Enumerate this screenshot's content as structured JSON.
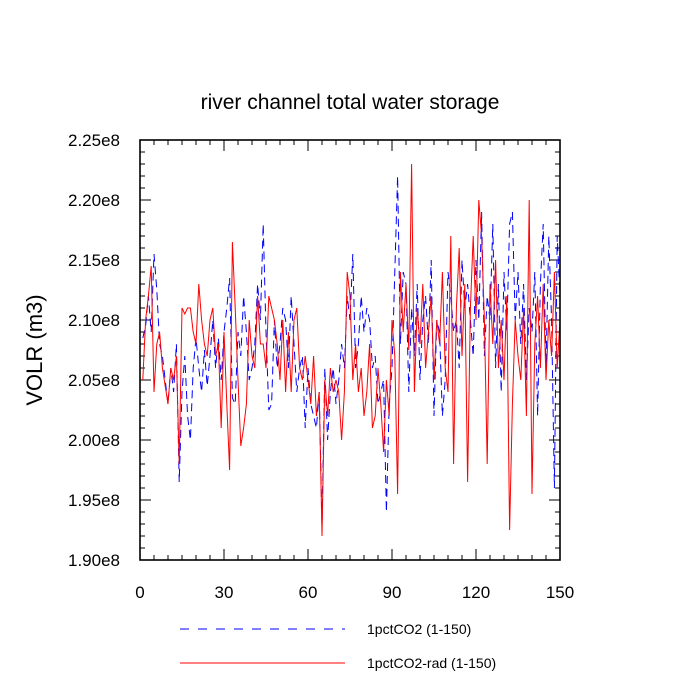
{
  "chart_data": {
    "type": "line",
    "title": "river channel total water storage",
    "xlabel": "",
    "ylabel": "VOLR  (m3)",
    "xlim": [
      0,
      150
    ],
    "ylim": [
      190000000.0,
      225000000.0
    ],
    "x_ticks": [
      0,
      30,
      60,
      90,
      120,
      150
    ],
    "x_tick_labels": [
      "0",
      "30",
      "60",
      "90",
      "120",
      "150"
    ],
    "y_ticks": [
      190000000.0,
      195000000.0,
      200000000.0,
      205000000.0,
      210000000.0,
      215000000.0,
      220000000.0,
      225000000.0
    ],
    "y_tick_labels": [
      "1.90e8",
      "1.95e8",
      "2.00e8",
      "2.05e8",
      "2.10e8",
      "2.15e8",
      "2.20e8",
      "2.25e8"
    ],
    "grid": false,
    "legend_position": "bottom",
    "series": [
      {
        "name": "1pctCO2 (1-150)",
        "color": "#0000ff",
        "dash": "dashed",
        "x": [
          1,
          2,
          3,
          4,
          5,
          6,
          7,
          8,
          9,
          10,
          11,
          12,
          13,
          14,
          15,
          16,
          17,
          18,
          19,
          20,
          21,
          22,
          23,
          24,
          25,
          26,
          27,
          28,
          29,
          30,
          31,
          32,
          33,
          34,
          35,
          36,
          37,
          38,
          39,
          40,
          41,
          42,
          43,
          44,
          45,
          46,
          47,
          48,
          49,
          50,
          51,
          52,
          53,
          54,
          55,
          56,
          57,
          58,
          59,
          60,
          61,
          62,
          63,
          64,
          65,
          66,
          67,
          68,
          69,
          70,
          71,
          72,
          73,
          74,
          75,
          76,
          77,
          78,
          79,
          80,
          81,
          82,
          83,
          84,
          85,
          86,
          87,
          88,
          89,
          90,
          91,
          92,
          93,
          94,
          95,
          96,
          97,
          98,
          99,
          100,
          101,
          102,
          103,
          104,
          105,
          106,
          107,
          108,
          109,
          110,
          111,
          112,
          113,
          114,
          115,
          116,
          117,
          118,
          119,
          120,
          121,
          122,
          123,
          124,
          125,
          126,
          127,
          128,
          129,
          130,
          131,
          132,
          133,
          134,
          135,
          136,
          137,
          138,
          139,
          140,
          141,
          142,
          143,
          144,
          145,
          146,
          147,
          148,
          149,
          150
        ],
        "y": [
          208500000.0,
          209500000.0,
          212000000.0,
          209000000.0,
          215500000.0,
          212500000.0,
          208000000.0,
          207000000.0,
          205000000.0,
          203000000.0,
          206000000.0,
          204000000.0,
          208000000.0,
          196500000.0,
          204000000.0,
          207000000.0,
          202000000.0,
          200000000.0,
          206000000.0,
          208500000.0,
          206000000.0,
          204000000.0,
          207500000.0,
          204500000.0,
          207000000.0,
          210000000.0,
          206000000.0,
          208500000.0,
          205000000.0,
          209000000.0,
          211000000.0,
          213500000.0,
          203500000.0,
          203000000.0,
          209000000.0,
          207000000.0,
          212000000.0,
          209000000.0,
          205000000.0,
          206000000.0,
          208000000.0,
          213000000.0,
          210000000.0,
          218000000.0,
          209000000.0,
          202500000.0,
          203000000.0,
          210000000.0,
          206000000.0,
          208000000.0,
          211000000.0,
          210000000.0,
          206000000.0,
          212000000.0,
          208000000.0,
          204000000.0,
          206000000.0,
          207000000.0,
          201000000.0,
          206000000.0,
          203000000.0,
          202000000.0,
          201000000.0,
          204000000.0,
          193000000.0,
          206000000.0,
          200000000.0,
          204000000.0,
          206000000.0,
          203000000.0,
          205000000.0,
          208000000.0,
          206000000.0,
          212000000.0,
          210000000.0,
          215500000.0,
          206000000.0,
          208000000.0,
          212000000.0,
          209000000.0,
          211000000.0,
          210000000.0,
          206000000.0,
          207000000.0,
          203000000.0,
          204000000.0,
          205000000.0,
          194000000.0,
          203000000.0,
          206000000.0,
          214000000.0,
          222000000.0,
          208000000.0,
          214000000.0,
          213000000.0,
          204000000.0,
          211000000.0,
          207000000.0,
          213000000.0,
          205000000.0,
          210000000.0,
          212000000.0,
          208000000.0,
          215000000.0,
          202000000.0,
          210000000.0,
          209000000.0,
          202000000.0,
          205000000.0,
          214000000.0,
          212000000.0,
          209000000.0,
          210000000.0,
          206000000.0,
          215000000.0,
          211000000.0,
          213000000.0,
          210000000.0,
          207000000.0,
          215000000.0,
          210000000.0,
          219000000.0,
          207000000.0,
          212000000.0,
          210000000.0,
          218000000.0,
          206000000.0,
          213000000.0,
          204000000.0,
          214000000.0,
          209000000.0,
          218000000.0,
          219000000.0,
          210000000.0,
          214000000.0,
          208000000.0,
          213000000.0,
          205000000.0,
          211000000.0,
          209000000.0,
          214000000.0,
          202000000.0,
          213000000.0,
          218000000.0,
          206000000.0,
          217000000.0,
          210000000.0,
          196000000.0,
          217000000.0,
          212000000.0
        ]
      },
      {
        "name": "1pctCO2-rad (1-150)",
        "color": "#ff0000",
        "dash": "solid",
        "x": [
          1,
          2,
          3,
          4,
          5,
          6,
          7,
          8,
          9,
          10,
          11,
          12,
          13,
          14,
          15,
          16,
          17,
          18,
          19,
          20,
          21,
          22,
          23,
          24,
          25,
          26,
          27,
          28,
          29,
          30,
          31,
          32,
          33,
          34,
          35,
          36,
          37,
          38,
          39,
          40,
          41,
          42,
          43,
          44,
          45,
          46,
          47,
          48,
          49,
          50,
          51,
          52,
          53,
          54,
          55,
          56,
          57,
          58,
          59,
          60,
          61,
          62,
          63,
          64,
          65,
          66,
          67,
          68,
          69,
          70,
          71,
          72,
          73,
          74,
          75,
          76,
          77,
          78,
          79,
          80,
          81,
          82,
          83,
          84,
          85,
          86,
          87,
          88,
          89,
          90,
          91,
          92,
          93,
          94,
          95,
          96,
          97,
          98,
          99,
          100,
          101,
          102,
          103,
          104,
          105,
          106,
          107,
          108,
          109,
          110,
          111,
          112,
          113,
          114,
          115,
          116,
          117,
          118,
          119,
          120,
          121,
          122,
          123,
          124,
          125,
          126,
          127,
          128,
          129,
          130,
          131,
          132,
          133,
          134,
          135,
          136,
          137,
          138,
          139,
          140,
          141,
          142,
          143,
          144,
          145,
          146,
          147,
          148,
          149,
          150
        ],
        "y": [
          205000000.0,
          210000000.0,
          212000000.0,
          214500000.0,
          204000000.0,
          208000000.0,
          209000000.0,
          206000000.0,
          204500000.0,
          203000000.0,
          206000000.0,
          205000000.0,
          207000000.0,
          198000000.0,
          211000000.0,
          210500000.0,
          211000000.0,
          211000000.0,
          209000000.0,
          208000000.0,
          213000000.0,
          210000000.0,
          208000000.0,
          207000000.0,
          210000000.0,
          211000000.0,
          207000000.0,
          208000000.0,
          201000000.0,
          209000000.0,
          203000000.0,
          197500000.0,
          216500000.0,
          211000000.0,
          205000000.0,
          199500000.0,
          201000000.0,
          203000000.0,
          210000000.0,
          207000000.0,
          206000000.0,
          212000000.0,
          208000000.0,
          208000000.0,
          206000000.0,
          212000000.0,
          211000000.0,
          210000000.0,
          208000000.0,
          205000000.0,
          210000000.0,
          204000000.0,
          209000000.0,
          204000000.0,
          210000000.0,
          211000000.0,
          206000000.0,
          205000000.0,
          207000000.0,
          205000000.0,
          203000000.0,
          207000000.0,
          202000000.0,
          204000000.0,
          192000000.0,
          205000000.0,
          202000000.0,
          206000000.0,
          204000000.0,
          205000000.0,
          204000000.0,
          200000000.0,
          204000000.0,
          214000000.0,
          212000000.0,
          205000000.0,
          208000000.0,
          204000000.0,
          206000000.0,
          202000000.0,
          204000000.0,
          208000000.0,
          201000000.0,
          202000000.0,
          206000000.0,
          203000000.0,
          199000000.0,
          205000000.0,
          202000000.0,
          210000000.0,
          207000000.0,
          195500000.0,
          214000000.0,
          209000000.0,
          213000000.0,
          207500000.0,
          223000000.0,
          204000000.0,
          211000000.0,
          208000000.0,
          213000000.0,
          206000000.0,
          209000000.0,
          212000000.0,
          205000000.0,
          210000000.0,
          208000000.0,
          214000000.0,
          206000000.0,
          204000000.0,
          217000000.0,
          198000000.0,
          211000000.0,
          216000000.0,
          207000000.0,
          213000000.0,
          196500000.0,
          211000000.0,
          217000000.0,
          210000000.0,
          220000000.0,
          217000000.0,
          210000000.0,
          198000000.0,
          213000000.0,
          208000000.0,
          215000000.0,
          206000000.0,
          210000000.0,
          205000000.0,
          212000000.0,
          192500000.0,
          203000000.0,
          210000000.0,
          207000000.0,
          205000000.0,
          211000000.0,
          202000000.0,
          220000000.0,
          195500000.0,
          208000000.0,
          212000000.0,
          206000000.0,
          213000000.0,
          205000000.0,
          210000000.0,
          207000000.0,
          214000000.0,
          206000000.0,
          210000000.0
        ]
      }
    ]
  }
}
